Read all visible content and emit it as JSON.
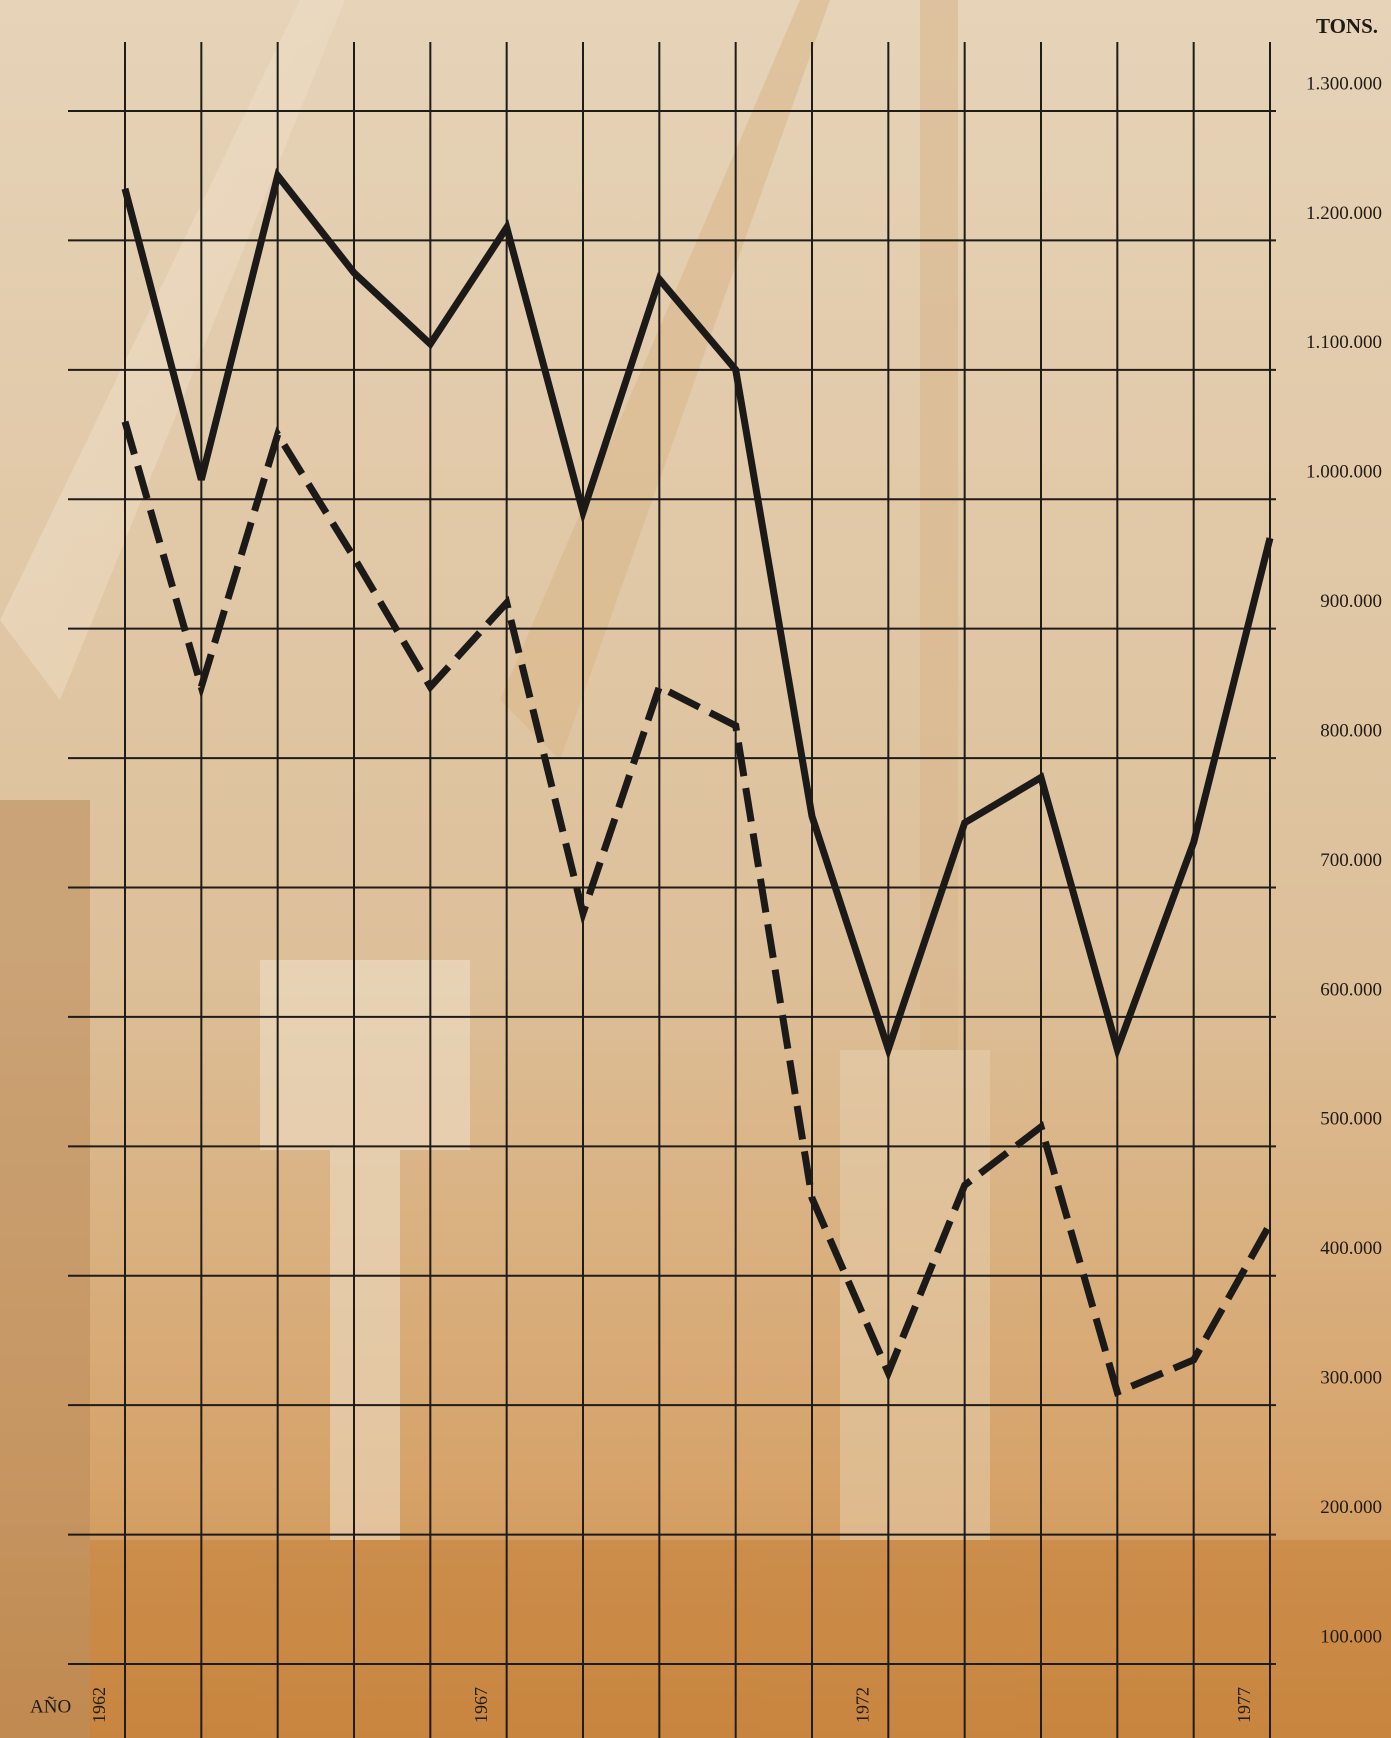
{
  "chart_data": {
    "type": "line",
    "y_label": "TONS.",
    "x_label": "AÑO",
    "categories": [
      "1962",
      null,
      null,
      null,
      null,
      "1967",
      null,
      null,
      null,
      null,
      "1972",
      null,
      null,
      null,
      null,
      "1977"
    ],
    "series": [
      {
        "color": "#1c1a18",
        "linestyle": "solid",
        "values": [
          1240000,
          1015000,
          1250000,
          1175000,
          1120000,
          1210000,
          990000,
          1170000,
          1100000,
          755000,
          575000,
          750000,
          785000,
          575000,
          735000,
          970000
        ]
      },
      {
        "color": "#1c1a18",
        "linestyle": "dashed",
        "values": [
          1060000,
          855000,
          1050000,
          955000,
          855000,
          920000,
          680000,
          855000,
          825000,
          460000,
          325000,
          470000,
          515000,
          310000,
          335000,
          440000
        ]
      }
    ],
    "ylim": [
      100000,
      1300000
    ],
    "yticks": [
      {
        "value": 100000,
        "label": "100.000"
      },
      {
        "value": 200000,
        "label": "200.000"
      },
      {
        "value": 300000,
        "label": "300.000"
      },
      {
        "value": 400000,
        "label": "400.000"
      },
      {
        "value": 500000,
        "label": "500.000"
      },
      {
        "value": 600000,
        "label": "600.000"
      },
      {
        "value": 700000,
        "label": "700.000"
      },
      {
        "value": 800000,
        "label": "800.000"
      },
      {
        "value": 900000,
        "label": "900.000"
      },
      {
        "value": 1000000,
        "label": "1.000.000"
      },
      {
        "value": 1100000,
        "label": "1.100.000"
      },
      {
        "value": 1200000,
        "label": "1.200.000"
      },
      {
        "value": 1300000,
        "label": "1.300.000"
      }
    ],
    "grid": true
  }
}
